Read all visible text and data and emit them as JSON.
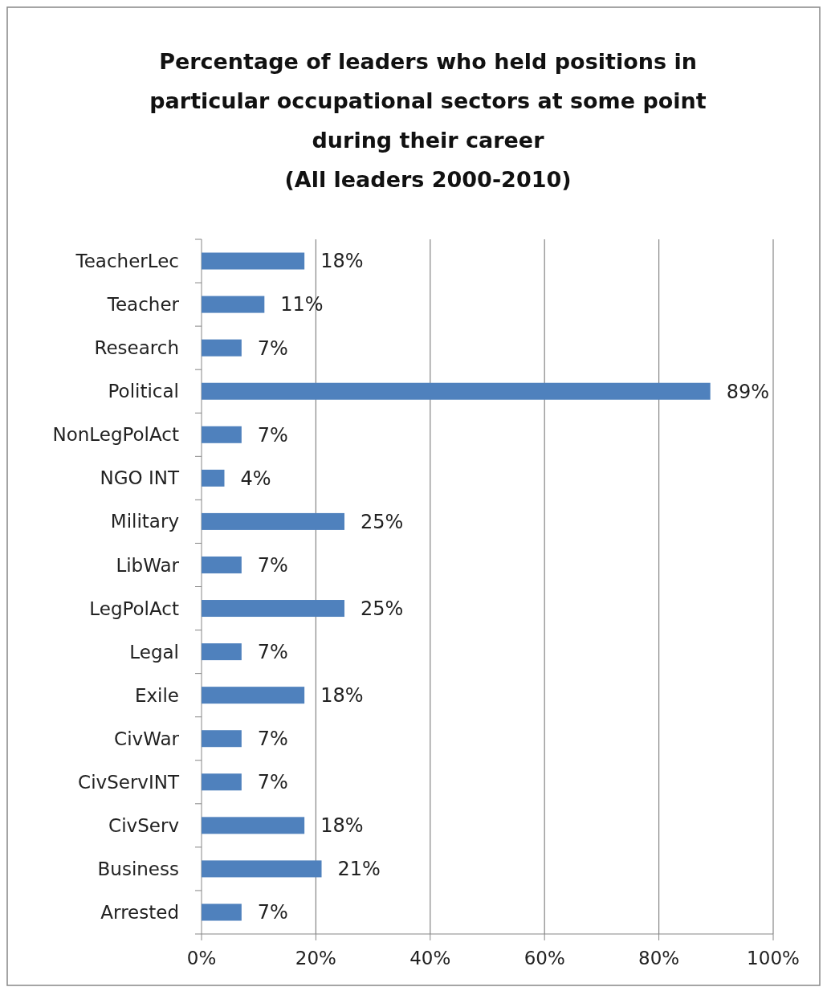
{
  "chart_data": {
    "type": "bar",
    "orientation": "horizontal",
    "title": "Percentage of leaders who held positions in\nparticular occupational sectors at some point\nduring their career\n(All leaders 2000-2010)",
    "categories": [
      "TeacherLec",
      "Teacher",
      "Research",
      "Political",
      "NonLegPolAct",
      "NGO INT",
      "Military",
      "LibWar",
      "LegPolAct",
      "Legal",
      "Exile",
      "CivWar",
      "CivServINT",
      "CivServ",
      "Business",
      "Arrested"
    ],
    "values": [
      18,
      11,
      7,
      89,
      7,
      4,
      25,
      7,
      25,
      7,
      18,
      7,
      7,
      18,
      21,
      7
    ],
    "value_labels": [
      "18%",
      "11%",
      "7%",
      "89%",
      "7%",
      "4%",
      "25%",
      "7%",
      "25%",
      "7%",
      "18%",
      "7%",
      "7%",
      "18%",
      "21%",
      "7%"
    ],
    "color": "#4f81bd",
    "xlim": [
      0,
      100
    ],
    "xticks": [
      {
        "value": 0,
        "label": "0%"
      },
      {
        "value": 20,
        "label": "20%"
      },
      {
        "value": 40,
        "label": "40%"
      },
      {
        "value": 60,
        "label": "60%"
      },
      {
        "value": 80,
        "label": "80%"
      },
      {
        "value": 100,
        "label": "100%"
      }
    ],
    "grid": "x"
  }
}
